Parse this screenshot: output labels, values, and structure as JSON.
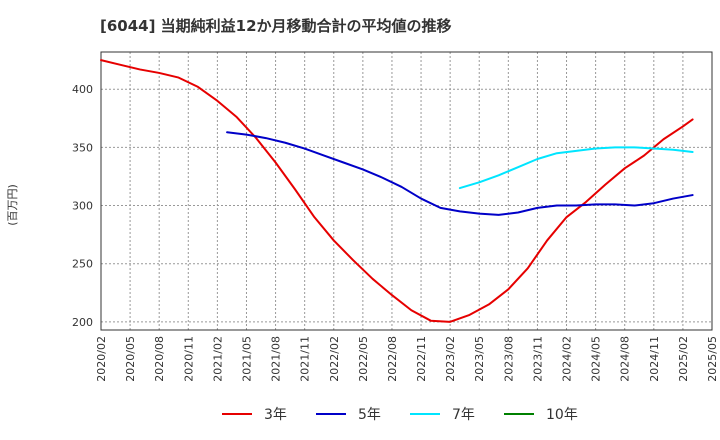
{
  "chart_data": {
    "type": "line",
    "title": "[6044]  当期純利益12か月移動合計の平均値の推移",
    "ylabel": "(百万円)",
    "ylim": [
      193,
      432
    ],
    "yticks": [
      200,
      250,
      300,
      350,
      400
    ],
    "xlim": [
      "2020/02",
      "2025/05"
    ],
    "xticks": [
      "2020/02",
      "2020/05",
      "2020/08",
      "2020/11",
      "2021/02",
      "2021/05",
      "2021/08",
      "2021/11",
      "2022/02",
      "2022/05",
      "2022/08",
      "2022/11",
      "2023/02",
      "2023/05",
      "2023/08",
      "2023/11",
      "2024/02",
      "2024/05",
      "2024/08",
      "2024/11",
      "2025/02",
      "2025/05"
    ],
    "grid": true,
    "legend_position": "bottom",
    "series": [
      {
        "name": "3年",
        "color": "#e60000",
        "points": [
          [
            "2020/02",
            425
          ],
          [
            "2020/04",
            421
          ],
          [
            "2020/06",
            417
          ],
          [
            "2020/08",
            414
          ],
          [
            "2020/10",
            410
          ],
          [
            "2020/12",
            402
          ],
          [
            "2021/02",
            390
          ],
          [
            "2021/04",
            376
          ],
          [
            "2021/06",
            358
          ],
          [
            "2021/08",
            337
          ],
          [
            "2021/10",
            314
          ],
          [
            "2021/12",
            290
          ],
          [
            "2022/02",
            270
          ],
          [
            "2022/04",
            253
          ],
          [
            "2022/06",
            237
          ],
          [
            "2022/08",
            223
          ],
          [
            "2022/10",
            210
          ],
          [
            "2022/12",
            201
          ],
          [
            "2023/02",
            200
          ],
          [
            "2023/04",
            206
          ],
          [
            "2023/06",
            215
          ],
          [
            "2023/08",
            228
          ],
          [
            "2023/10",
            246
          ],
          [
            "2023/12",
            270
          ],
          [
            "2024/02",
            290
          ],
          [
            "2024/04",
            303
          ],
          [
            "2024/06",
            318
          ],
          [
            "2024/08",
            332
          ],
          [
            "2024/10",
            343
          ],
          [
            "2024/12",
            357
          ],
          [
            "2025/02",
            368
          ],
          [
            "2025/03",
            374
          ]
        ]
      },
      {
        "name": "5年",
        "color": "#0000c8",
        "points": [
          [
            "2021/03",
            363
          ],
          [
            "2021/05",
            361
          ],
          [
            "2021/07",
            358
          ],
          [
            "2021/09",
            354
          ],
          [
            "2021/11",
            349
          ],
          [
            "2022/01",
            343
          ],
          [
            "2022/03",
            337
          ],
          [
            "2022/05",
            331
          ],
          [
            "2022/07",
            324
          ],
          [
            "2022/09",
            316
          ],
          [
            "2022/11",
            306
          ],
          [
            "2023/01",
            298
          ],
          [
            "2023/03",
            295
          ],
          [
            "2023/05",
            293
          ],
          [
            "2023/07",
            292
          ],
          [
            "2023/09",
            294
          ],
          [
            "2023/11",
            298
          ],
          [
            "2024/01",
            300
          ],
          [
            "2024/03",
            300
          ],
          [
            "2024/05",
            301
          ],
          [
            "2024/07",
            301
          ],
          [
            "2024/09",
            300
          ],
          [
            "2024/11",
            302
          ],
          [
            "2025/01",
            306
          ],
          [
            "2025/03",
            309
          ]
        ]
      },
      {
        "name": "7年",
        "color": "#00e5ff",
        "points": [
          [
            "2023/03",
            315
          ],
          [
            "2023/05",
            320
          ],
          [
            "2023/07",
            326
          ],
          [
            "2023/09",
            333
          ],
          [
            "2023/11",
            340
          ],
          [
            "2024/01",
            345
          ],
          [
            "2024/03",
            347
          ],
          [
            "2024/05",
            349
          ],
          [
            "2024/07",
            350
          ],
          [
            "2024/09",
            350
          ],
          [
            "2024/11",
            349
          ],
          [
            "2025/01",
            348
          ],
          [
            "2025/03",
            346
          ]
        ]
      },
      {
        "name": "10年",
        "color": "#008000",
        "points": []
      }
    ]
  }
}
